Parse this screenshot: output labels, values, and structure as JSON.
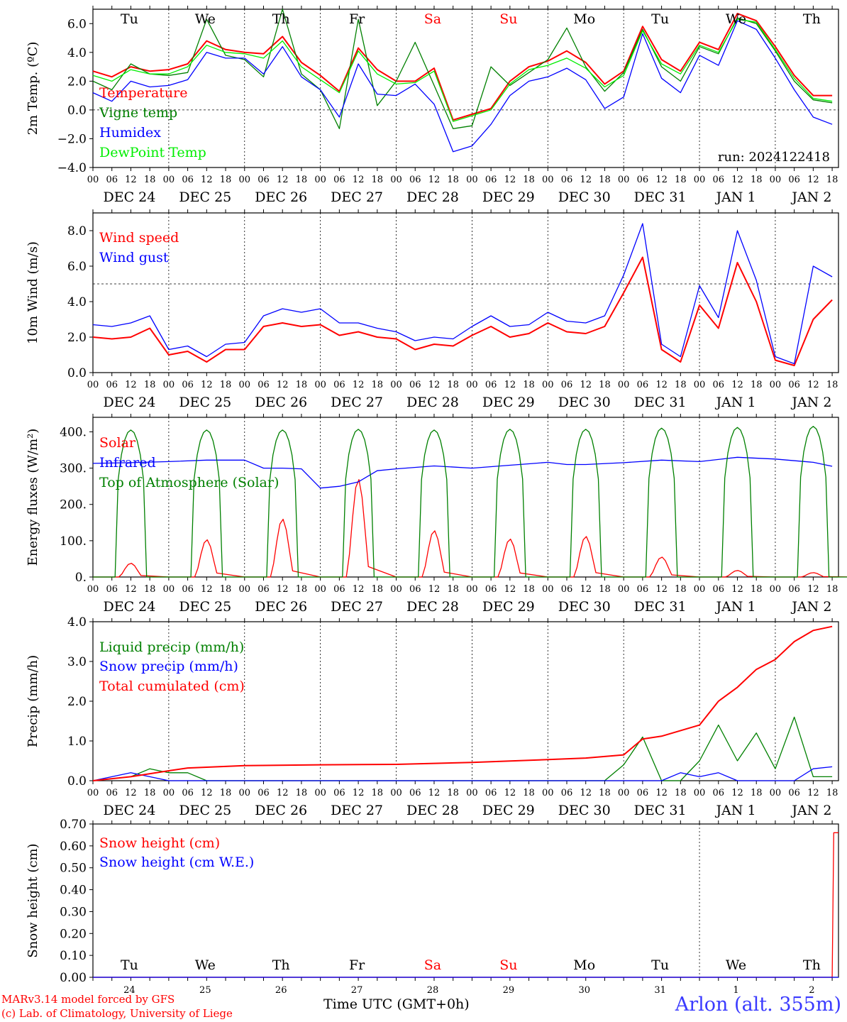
{
  "run_label": "run: 2024122418",
  "footer": {
    "credit_line1": "MARv3.14 model forced by GFS",
    "credit_line2": "(c) Lab. of Climatology, University of Liege",
    "time_axis_label": "Time UTC (GMT+0h)",
    "station": "Arlon (alt. 355m)"
  },
  "hour_ticks": [
    "00",
    "06",
    "12",
    "18"
  ],
  "date_labels": [
    "DEC 24",
    "DEC 25",
    "DEC 26",
    "DEC 27",
    "DEC 28",
    "DEC 29",
    "DEC 30",
    "DEC 31",
    "JAN  1",
    "JAN  2"
  ],
  "weekdays": [
    {
      "label": "Tu",
      "color": "#000000"
    },
    {
      "label": "We",
      "color": "#000000"
    },
    {
      "label": "Th",
      "color": "#000000"
    },
    {
      "label": "Fr",
      "color": "#000000"
    },
    {
      "label": "Sa",
      "color": "#ff0000"
    },
    {
      "label": "Su",
      "color": "#ff0000"
    },
    {
      "label": "Mo",
      "color": "#000000"
    },
    {
      "label": "Tu",
      "color": "#000000"
    },
    {
      "label": "We",
      "color": "#000000"
    },
    {
      "label": "Th",
      "color": "#000000"
    }
  ],
  "snow_day_numbers": [
    "24",
    "25",
    "26",
    "27",
    "28",
    "29",
    "30",
    "31",
    "1",
    "2"
  ],
  "colors": {
    "red": "#ff0000",
    "green": "#008000",
    "blue": "#0000ff",
    "lightgreen": "#00ee00"
  },
  "chart_data": [
    {
      "type": "line",
      "ylabel": "2m Temp. (ºC)",
      "ylim": [
        -4,
        7
      ],
      "yticks": [
        6,
        4,
        2,
        0,
        -2,
        -4
      ],
      "ytick_labels": [
        "6.0",
        "4.0",
        "2.0",
        "0.0",
        "−2.0",
        "−4.0"
      ],
      "hline": 0,
      "x_unit": "hours since DEC 24 00 UTC",
      "series": [
        {
          "name": "Temperature",
          "color": "#ff0000",
          "x": [
            0,
            6,
            12,
            18,
            24,
            30,
            36,
            42,
            48,
            54,
            60,
            66,
            72,
            78,
            84,
            90,
            96,
            102,
            108,
            114,
            120,
            126,
            132,
            138,
            144,
            150,
            156,
            162,
            168,
            174,
            180,
            186,
            192,
            198,
            204,
            210,
            216,
            222,
            228,
            234
          ],
          "y": [
            2.7,
            2.3,
            3.0,
            2.7,
            2.8,
            3.2,
            4.8,
            4.2,
            4.0,
            3.9,
            5.1,
            3.3,
            2.4,
            1.3,
            4.3,
            2.8,
            2.0,
            2.0,
            2.9,
            -0.7,
            -0.3,
            0.1,
            2.0,
            3.0,
            3.4,
            4.1,
            3.3,
            1.8,
            2.7,
            5.8,
            3.5,
            2.7,
            4.7,
            4.2,
            6.7,
            6.2,
            4.4,
            2.4,
            1.0,
            1.0
          ]
        },
        {
          "name": "Vigne temp",
          "color": "#008000",
          "x": [
            0,
            6,
            12,
            18,
            24,
            30,
            36,
            42,
            48,
            54,
            60,
            66,
            72,
            78,
            84,
            90,
            96,
            102,
            108,
            114,
            120,
            126,
            132,
            138,
            144,
            150,
            156,
            162,
            168,
            174,
            180,
            186,
            192,
            198,
            204,
            210,
            216,
            222,
            228,
            234
          ],
          "y": [
            2.0,
            1.4,
            3.2,
            2.5,
            2.4,
            2.6,
            6.3,
            3.8,
            3.5,
            2.3,
            7.0,
            2.5,
            1.4,
            -1.3,
            6.3,
            0.3,
            2.0,
            4.7,
            1.7,
            -1.3,
            -1.1,
            3.0,
            1.7,
            2.6,
            3.5,
            5.7,
            3.0,
            1.3,
            2.6,
            5.6,
            3.0,
            2.0,
            4.4,
            3.9,
            6.4,
            6.0,
            4.1,
            2.0,
            0.7,
            0.5
          ]
        },
        {
          "name": "Humidex",
          "color": "#0000ff",
          "x": [
            0,
            6,
            12,
            18,
            24,
            30,
            36,
            42,
            48,
            54,
            60,
            66,
            72,
            78,
            84,
            90,
            96,
            102,
            108,
            114,
            120,
            126,
            132,
            138,
            144,
            150,
            156,
            162,
            168,
            174,
            180,
            186,
            192,
            198,
            204,
            210,
            216,
            222,
            228,
            234
          ],
          "y": [
            1.2,
            0.6,
            2.0,
            1.6,
            1.7,
            2.1,
            4.0,
            3.6,
            3.6,
            2.5,
            4.4,
            2.3,
            1.4,
            -0.5,
            3.2,
            1.1,
            1.0,
            1.8,
            0.4,
            -2.9,
            -2.5,
            -1.0,
            1.0,
            2.0,
            2.3,
            2.9,
            2.1,
            0.1,
            0.9,
            5.3,
            2.2,
            1.2,
            3.8,
            3.1,
            6.2,
            5.6,
            3.6,
            1.4,
            -0.5,
            -1.0
          ]
        },
        {
          "name": "DewPoint Temp",
          "color": "#00ee00",
          "x": [
            0,
            6,
            12,
            18,
            24,
            30,
            36,
            42,
            48,
            54,
            60,
            66,
            72,
            78,
            84,
            90,
            96,
            102,
            108,
            114,
            120,
            126,
            132,
            138,
            144,
            150,
            156,
            162,
            168,
            174,
            180,
            186,
            192,
            198,
            204,
            210,
            216,
            222,
            228,
            234
          ],
          "y": [
            2.4,
            2.0,
            2.8,
            2.5,
            2.5,
            3.0,
            4.5,
            4.0,
            3.9,
            3.6,
            4.8,
            3.0,
            2.1,
            1.2,
            4.1,
            2.5,
            1.8,
            1.9,
            2.7,
            -0.8,
            -0.4,
            0.0,
            1.8,
            2.8,
            3.1,
            3.6,
            2.9,
            1.6,
            2.4,
            5.5,
            3.2,
            2.5,
            4.5,
            4.0,
            6.3,
            6.1,
            4.2,
            2.2,
            0.8,
            0.6
          ]
        }
      ],
      "annotations": [
        "run: 2024122418"
      ]
    },
    {
      "type": "line",
      "ylabel": "10m Wind (m/s)",
      "ylim": [
        0,
        9
      ],
      "yticks": [
        8,
        6,
        4,
        2,
        0
      ],
      "ytick_labels": [
        "8.0",
        "6.0",
        "4.0",
        "2.0",
        "0.0"
      ],
      "hline": 5,
      "x_unit": "hours since DEC 24 00 UTC",
      "series": [
        {
          "name": "Wind speed",
          "color": "#ff0000",
          "x": [
            0,
            6,
            12,
            18,
            24,
            30,
            36,
            42,
            48,
            54,
            60,
            66,
            72,
            78,
            84,
            90,
            96,
            102,
            108,
            114,
            120,
            126,
            132,
            138,
            144,
            150,
            156,
            162,
            168,
            174,
            180,
            186,
            192,
            198,
            204,
            210,
            216,
            222,
            228,
            234
          ],
          "y": [
            2.0,
            1.9,
            2.0,
            2.5,
            1.0,
            1.2,
            0.6,
            1.3,
            1.3,
            2.6,
            2.8,
            2.6,
            2.7,
            2.1,
            2.3,
            2.0,
            1.9,
            1.3,
            1.6,
            1.5,
            2.1,
            2.6,
            2.0,
            2.2,
            2.8,
            2.3,
            2.2,
            2.6,
            4.5,
            6.5,
            1.3,
            0.6,
            3.8,
            2.5,
            6.2,
            4.0,
            0.7,
            0.4,
            3.0,
            4.1
          ]
        },
        {
          "name": "Wind gust",
          "color": "#0000ff",
          "x": [
            0,
            6,
            12,
            18,
            24,
            30,
            36,
            42,
            48,
            54,
            60,
            66,
            72,
            78,
            84,
            90,
            96,
            102,
            108,
            114,
            120,
            126,
            132,
            138,
            144,
            150,
            156,
            162,
            168,
            174,
            180,
            186,
            192,
            198,
            204,
            210,
            216,
            222,
            228,
            234
          ],
          "y": [
            2.7,
            2.6,
            2.8,
            3.2,
            1.3,
            1.5,
            0.9,
            1.6,
            1.7,
            3.2,
            3.6,
            3.4,
            3.6,
            2.8,
            2.8,
            2.5,
            2.3,
            1.8,
            2.0,
            1.9,
            2.6,
            3.2,
            2.6,
            2.7,
            3.4,
            2.9,
            2.8,
            3.2,
            5.5,
            8.4,
            1.6,
            0.9,
            4.9,
            3.1,
            8.0,
            5.2,
            0.9,
            0.5,
            6.0,
            5.4
          ]
        }
      ]
    },
    {
      "type": "line",
      "ylabel": "Energy fluxes (W/m²)",
      "ylim": [
        0,
        440
      ],
      "yticks": [
        400,
        300,
        200,
        100,
        0
      ],
      "ytick_labels": [
        "400.",
        "300.",
        "200.",
        "100.",
        "0."
      ],
      "x_unit": "hours since DEC 24 00 UTC",
      "series": [
        {
          "name": "Solar",
          "color": "#ff0000",
          "days_peak_hour": 12,
          "daily_peak": [
            38,
            103,
            160,
            270,
            128,
            105,
            112,
            55,
            18,
            12
          ]
        },
        {
          "name": "Infrared",
          "color": "#0000ff",
          "x": [
            0,
            12,
            24,
            36,
            48,
            54,
            60,
            66,
            72,
            78,
            84,
            90,
            96,
            108,
            120,
            132,
            138,
            144,
            150,
            156,
            168,
            180,
            192,
            204,
            216,
            228,
            234
          ],
          "y": [
            313,
            315,
            318,
            322,
            322,
            300,
            300,
            298,
            245,
            250,
            262,
            293,
            298,
            306,
            300,
            308,
            312,
            316,
            310,
            310,
            315,
            322,
            318,
            330,
            325,
            316,
            305
          ]
        },
        {
          "name": "Top of Atmosphere (Solar)",
          "color": "#008000",
          "days_peak_hour": 12,
          "daily_peak": [
            405,
            405,
            405,
            407,
            405,
            407,
            407,
            410,
            412,
            415
          ]
        }
      ]
    },
    {
      "type": "line",
      "ylabel": "Precip (mm/h)",
      "ylim": [
        0,
        4
      ],
      "yticks": [
        4,
        3,
        2,
        1,
        0
      ],
      "ytick_labels": [
        "4.0",
        "3.0",
        "2.0",
        "1.0",
        "0.0"
      ],
      "x_unit": "hours since DEC 24 00 UTC",
      "series": [
        {
          "name": "Liquid precip (mm/h)",
          "color": "#008000",
          "x": [
            0,
            12,
            18,
            24,
            30,
            36,
            72,
            120,
            162,
            168,
            174,
            180,
            186,
            192,
            198,
            204,
            210,
            216,
            222,
            228,
            234
          ],
          "y": [
            0.0,
            0.1,
            0.3,
            0.2,
            0.2,
            0.0,
            0.0,
            0.0,
            0.0,
            0.4,
            1.1,
            0.0,
            0.0,
            0.5,
            1.4,
            0.5,
            1.2,
            0.3,
            1.6,
            0.1,
            0.1
          ]
        },
        {
          "name": "Snow precip (mm/h)",
          "color": "#0000ff",
          "x": [
            0,
            12,
            18,
            24,
            180,
            186,
            192,
            198,
            204,
            210,
            216,
            222,
            228,
            234
          ],
          "y": [
            0.0,
            0.2,
            0.1,
            0.0,
            0.0,
            0.2,
            0.1,
            0.2,
            0.0,
            0.0,
            0.0,
            0.0,
            0.3,
            0.35
          ]
        },
        {
          "name": "Total cumulated (cm)",
          "color": "#ff0000",
          "x": [
            0,
            12,
            24,
            30,
            48,
            72,
            96,
            120,
            144,
            156,
            168,
            174,
            180,
            192,
            198,
            204,
            210,
            216,
            222,
            228,
            234
          ],
          "y": [
            0.0,
            0.1,
            0.25,
            0.32,
            0.38,
            0.4,
            0.41,
            0.46,
            0.53,
            0.57,
            0.65,
            1.05,
            1.12,
            1.4,
            2.0,
            2.35,
            2.8,
            3.05,
            3.5,
            3.78,
            3.88
          ]
        }
      ]
    },
    {
      "type": "line",
      "ylabel": "Snow height (cm)",
      "ylim": [
        0,
        0.7
      ],
      "yticks": [
        0.7,
        0.6,
        0.5,
        0.4,
        0.3,
        0.2,
        0.1,
        0.0
      ],
      "ytick_labels": [
        "0.70",
        "0.60",
        "0.50",
        "0.40",
        "0.30",
        "0.20",
        "0.10",
        "0.00"
      ],
      "x_unit": "hours since DEC 24 00 UTC",
      "series": [
        {
          "name": "Snow height (cm)",
          "color": "#ff0000",
          "x": [
            0,
            234,
            234.5,
            236
          ],
          "y": [
            0,
            0,
            0.66,
            0.66
          ]
        },
        {
          "name": "Snow height (cm W.E.)",
          "color": "#0000ff",
          "x": [
            0,
            236
          ],
          "y": [
            0,
            0
          ]
        }
      ]
    }
  ]
}
